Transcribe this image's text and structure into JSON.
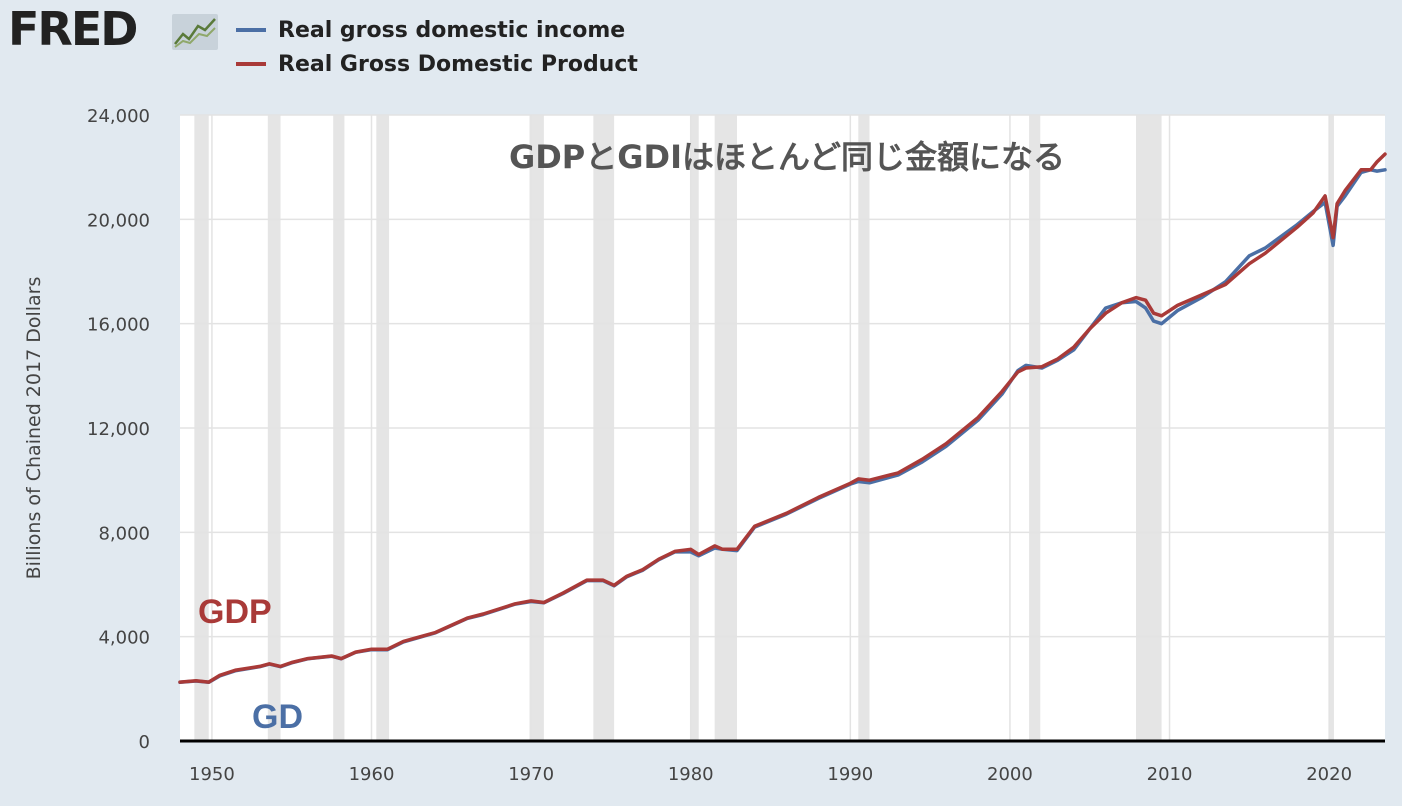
{
  "header": {
    "logo_text": "FRED",
    "logo_icon": "line-chart-icon"
  },
  "colors": {
    "background": "#e1e9f0",
    "plot_background": "#ffffff",
    "gdi": "#4b6fa5",
    "gdp": "#a93a38",
    "recession_band": "#e5e5e5",
    "grid": "#e3e3e3"
  },
  "chart_data": {
    "type": "line",
    "ylabel": "Billions of Chained 2017 Dollars",
    "ylim": [
      0,
      24000
    ],
    "xlim": [
      1948.0,
      2023.5
    ],
    "yticks": [
      0,
      4000,
      8000,
      12000,
      16000,
      20000,
      24000
    ],
    "ytick_labels": [
      "0",
      "4,000",
      "8,000",
      "12,000",
      "16,000",
      "20,000",
      "24,000"
    ],
    "xticks": [
      1950,
      1960,
      1970,
      1980,
      1990,
      2000,
      2010,
      2020
    ],
    "xtick_labels": [
      "1950",
      "1960",
      "1970",
      "1980",
      "1990",
      "2000",
      "2010",
      "2020"
    ],
    "grid": true,
    "legend_position": "top-left",
    "annotations": {
      "title": "GDPとGDIはほとんど同じ金額になる",
      "gdp_label": "GDP",
      "gdi_label": "GD"
    },
    "recessions": [
      [
        1948.9,
        1949.8
      ],
      [
        1953.5,
        1954.3
      ],
      [
        1957.6,
        1958.3
      ],
      [
        1960.3,
        1961.1
      ],
      [
        1969.9,
        1970.8
      ],
      [
        1973.9,
        1975.2
      ],
      [
        1980.0,
        1980.5
      ],
      [
        1981.5,
        1982.9
      ],
      [
        1990.5,
        1991.2
      ],
      [
        2001.2,
        2001.9
      ],
      [
        2007.9,
        2009.5
      ],
      [
        2020.0,
        2020.3
      ]
    ],
    "series": [
      {
        "name": "Real gross domestic income",
        "color": "#4b6fa5",
        "x": [
          1948.0,
          1949.0,
          1949.8,
          1950.5,
          1951.5,
          1953.0,
          1953.6,
          1954.3,
          1955.0,
          1956.0,
          1957.5,
          1958.1,
          1959.0,
          1960.0,
          1961.0,
          1962.0,
          1964.0,
          1966.0,
          1967.0,
          1969.0,
          1970.0,
          1970.8,
          1972.0,
          1973.5,
          1974.5,
          1975.2,
          1976.0,
          1977.0,
          1978.0,
          1979.0,
          1980.0,
          1980.5,
          1981.5,
          1982.0,
          1982.9,
          1984.0,
          1986.0,
          1988.0,
          1990.0,
          1990.5,
          1991.2,
          1993.0,
          1994.5,
          1996.0,
          1998.0,
          1999.5,
          2000.5,
          2001.0,
          2002.0,
          2003.0,
          2004.0,
          2005.0,
          2006.0,
          2007.0,
          2007.9,
          2008.5,
          2009.0,
          2009.5,
          2010.5,
          2012.0,
          2013.5,
          2015.0,
          2016.0,
          2018.0,
          2019.0,
          2019.75,
          2020.25,
          2020.5,
          2021.0,
          2022.0,
          2022.6,
          2023.0,
          2023.5
        ],
        "values": [
          2250,
          2300,
          2250,
          2500,
          2700,
          2850,
          2950,
          2850,
          3000,
          3150,
          3250,
          3150,
          3400,
          3500,
          3500,
          3800,
          4150,
          4700,
          4850,
          5250,
          5350,
          5300,
          5650,
          6150,
          6150,
          5950,
          6300,
          6550,
          6950,
          7250,
          7250,
          7100,
          7400,
          7350,
          7300,
          8200,
          8700,
          9300,
          9850,
          9950,
          9900,
          10200,
          10700,
          11300,
          12300,
          13300,
          14200,
          14400,
          14300,
          14600,
          15000,
          15800,
          16600,
          16800,
          16850,
          16600,
          16100,
          16000,
          16500,
          17000,
          17600,
          18600,
          18900,
          19800,
          20300,
          20650,
          19000,
          20500,
          20900,
          21800,
          21900,
          21850,
          21900
        ]
      },
      {
        "name": "Real Gross Domestic Product",
        "color": "#a93a38",
        "x": [
          1948.0,
          1949.0,
          1949.8,
          1950.5,
          1951.5,
          1953.0,
          1953.6,
          1954.3,
          1955.0,
          1956.0,
          1957.5,
          1958.1,
          1959.0,
          1960.0,
          1961.0,
          1962.0,
          1964.0,
          1966.0,
          1967.0,
          1969.0,
          1970.0,
          1970.8,
          1972.0,
          1973.5,
          1974.5,
          1975.2,
          1976.0,
          1977.0,
          1978.0,
          1979.0,
          1980.0,
          1980.5,
          1981.5,
          1982.0,
          1982.9,
          1984.0,
          1986.0,
          1988.0,
          1990.0,
          1990.5,
          1991.2,
          1993.0,
          1994.5,
          1996.0,
          1998.0,
          1999.5,
          2000.5,
          2001.0,
          2002.0,
          2003.0,
          2004.0,
          2005.0,
          2006.0,
          2007.0,
          2007.9,
          2008.5,
          2009.0,
          2009.5,
          2010.5,
          2012.0,
          2013.5,
          2015.0,
          2016.0,
          2018.0,
          2019.0,
          2019.75,
          2020.25,
          2020.5,
          2021.0,
          2022.0,
          2022.6,
          2023.0,
          2023.5
        ],
        "values": [
          2260,
          2310,
          2260,
          2520,
          2720,
          2860,
          2960,
          2860,
          3010,
          3160,
          3260,
          3160,
          3410,
          3520,
          3520,
          3820,
          4160,
          4710,
          4870,
          5260,
          5370,
          5310,
          5670,
          6170,
          6170,
          5970,
          6320,
          6570,
          6970,
          7270,
          7350,
          7150,
          7480,
          7350,
          7350,
          8230,
          8730,
          9340,
          9880,
          10050,
          10000,
          10280,
          10800,
          11400,
          12400,
          13400,
          14150,
          14300,
          14350,
          14650,
          15100,
          15800,
          16400,
          16800,
          17000,
          16900,
          16400,
          16300,
          16700,
          17100,
          17500,
          18300,
          18700,
          19700,
          20250,
          20900,
          19300,
          20600,
          21100,
          21900,
          21900,
          22200,
          22500
        ]
      }
    ]
  }
}
